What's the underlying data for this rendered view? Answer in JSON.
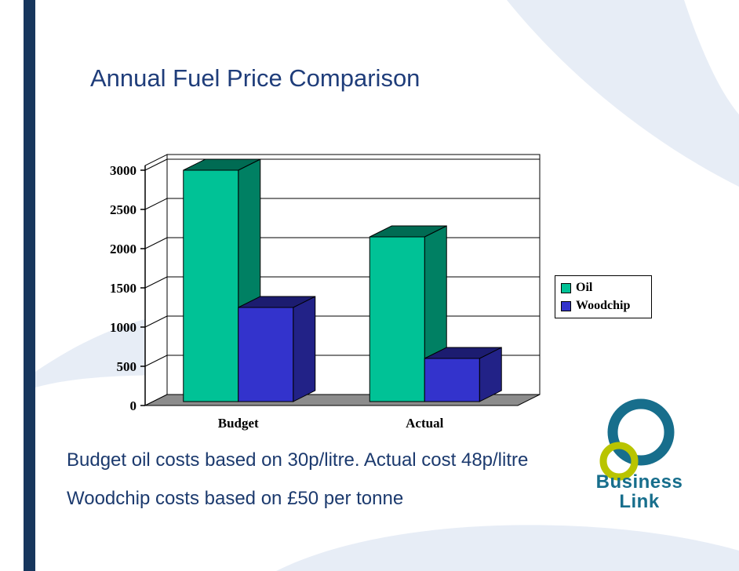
{
  "slide": {
    "title": "Annual Fuel Price Comparison",
    "notes": [
      "Budget oil costs based on 30p/litre. Actual cost 48p/litre",
      "Woodchip costs based on £50 per tonne"
    ]
  },
  "logo": {
    "line1": "Business",
    "line2": "Link"
  },
  "colors": {
    "accent_bar": "#17365D",
    "title_text": "#1F3D7A",
    "body_text": "#1C3A6E",
    "swoosh": "#E7EDF6",
    "logo_teal": "#176E8C",
    "logo_green": "#B9C400",
    "chart_floor": "#8C8C8C"
  },
  "chart_data": {
    "type": "bar",
    "style": "3d-clustered",
    "title": "",
    "categories": [
      "Budget",
      "Actual"
    ],
    "series": [
      {
        "name": "Oil",
        "color": "#00C296",
        "values": [
          2950,
          2100
        ]
      },
      {
        "name": "Woodchip",
        "color": "#3333CC",
        "values": [
          1200,
          550
        ]
      }
    ],
    "xlabel": "",
    "ylabel": "",
    "ylim": [
      0,
      3000
    ],
    "yticks": [
      0,
      500,
      1000,
      1500,
      2000,
      2500,
      3000
    ],
    "grid": true,
    "legend_position": "right"
  }
}
